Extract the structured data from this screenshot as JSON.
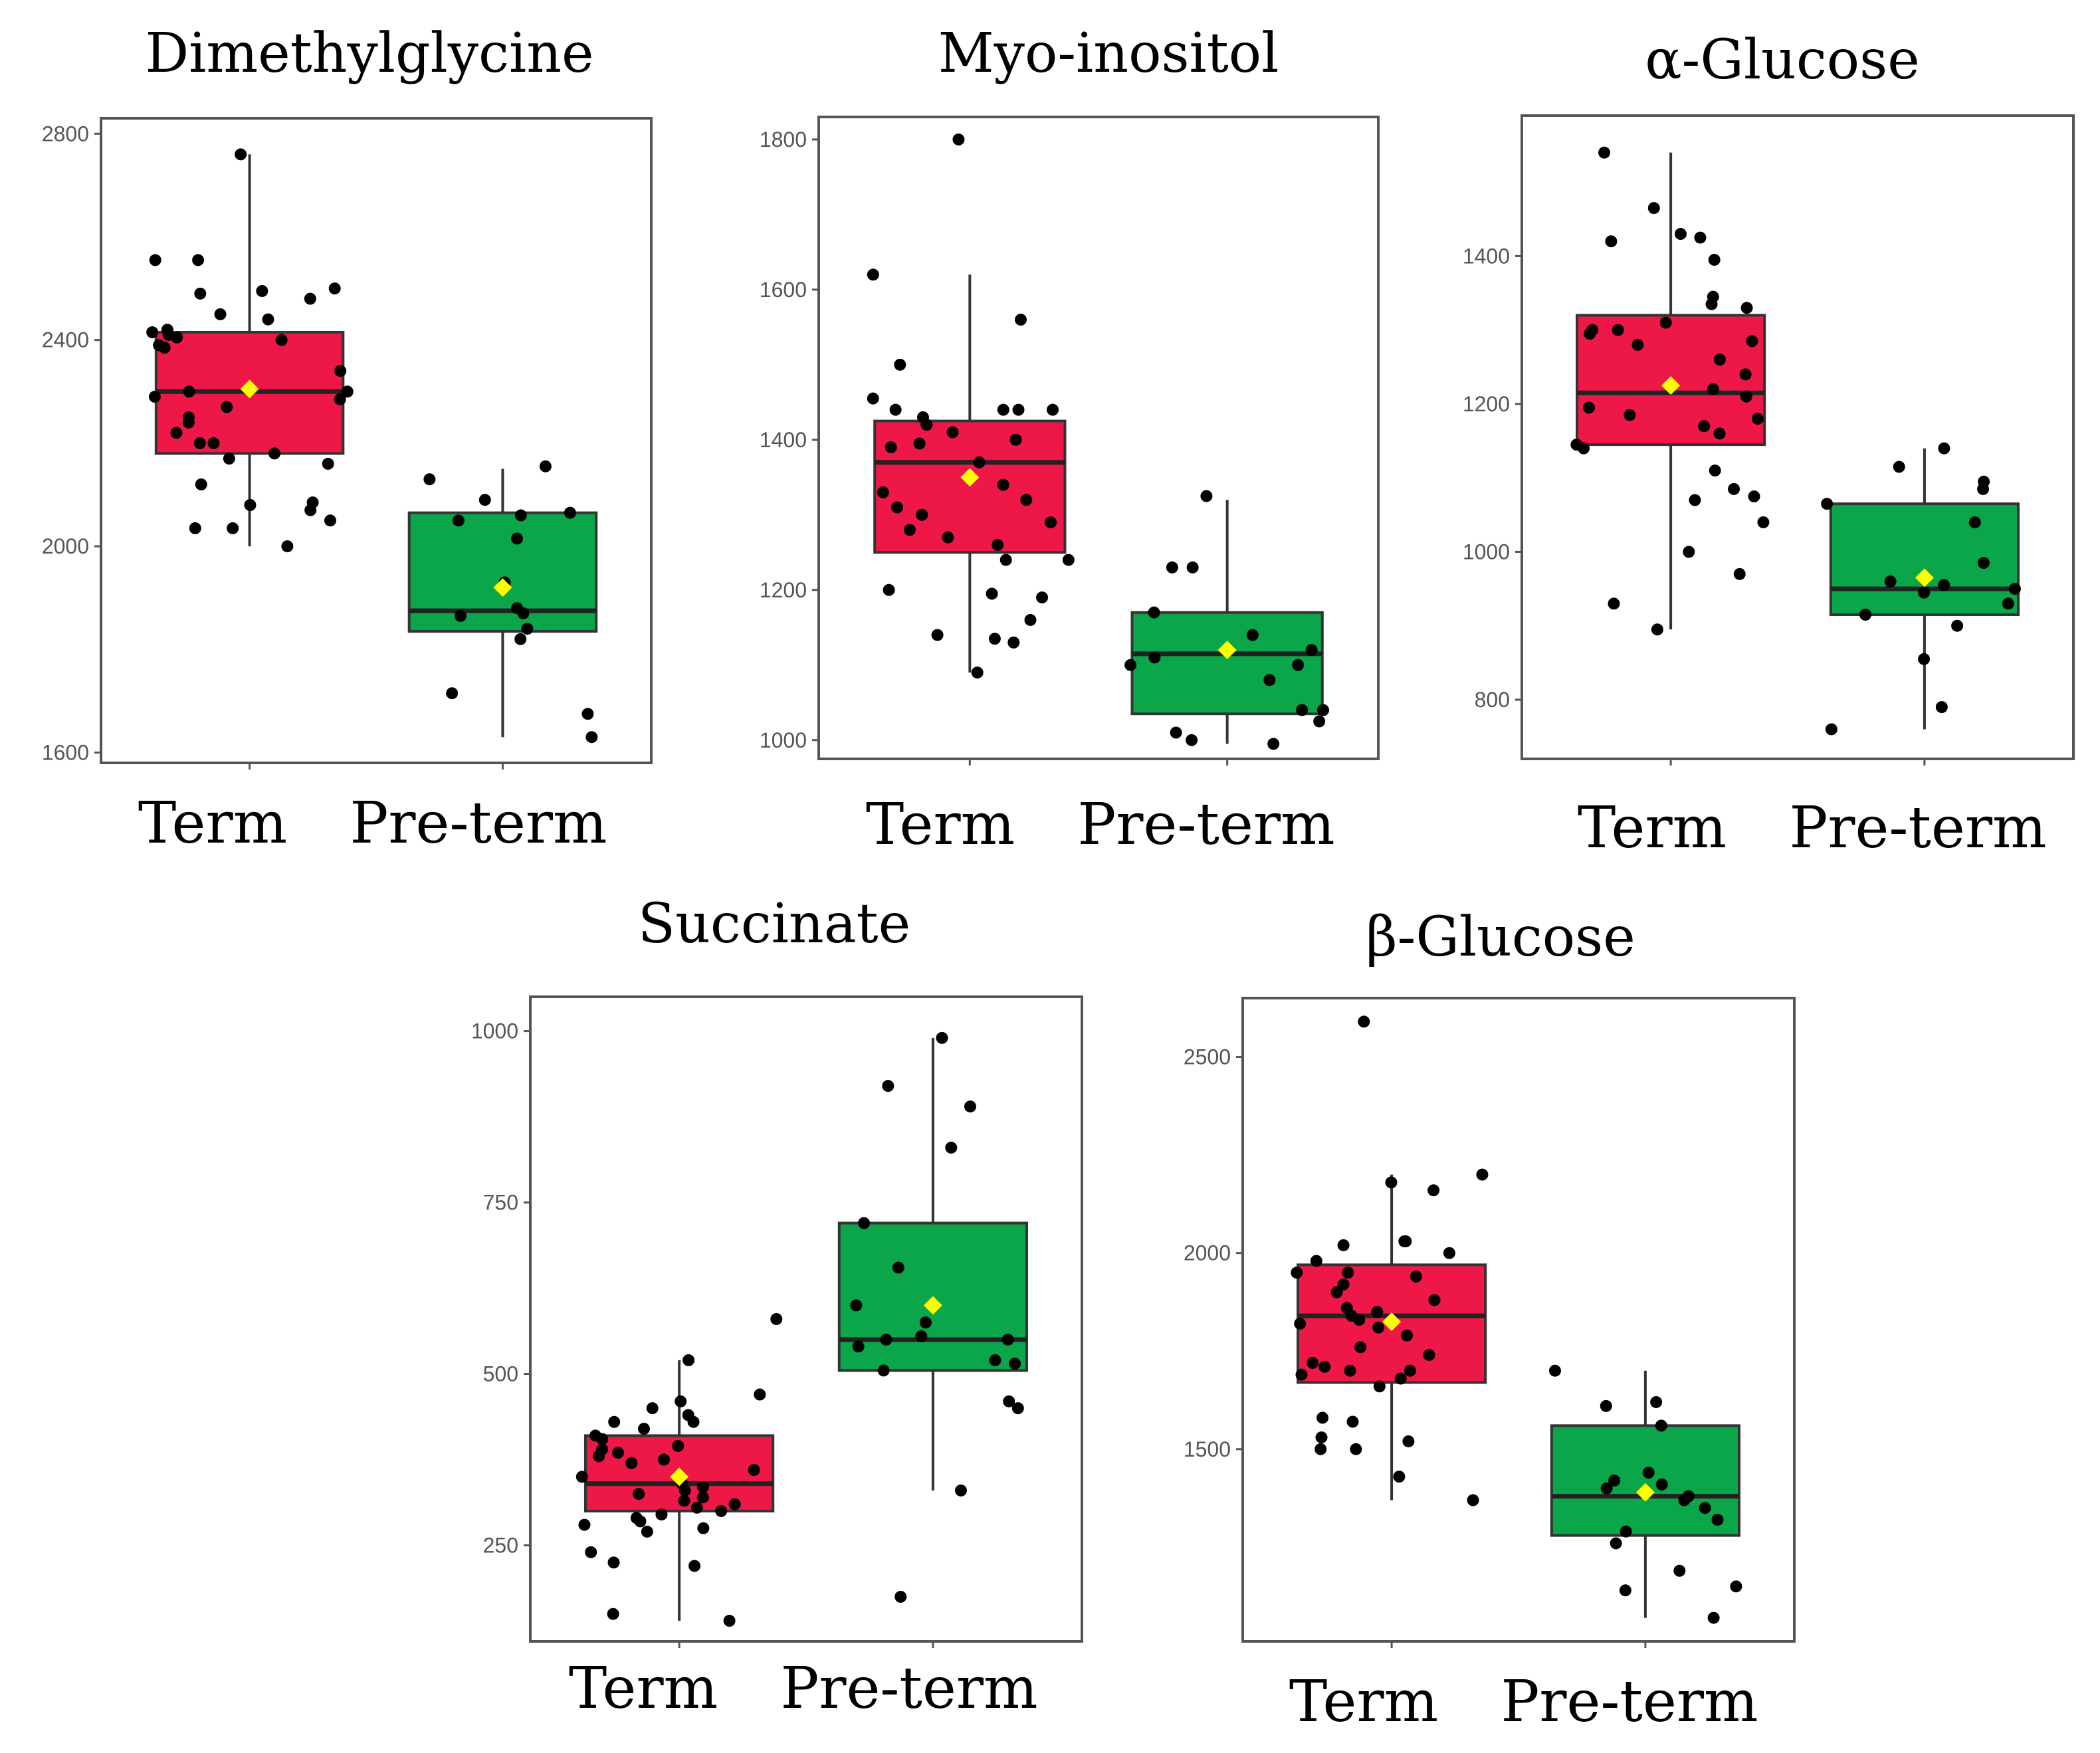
{
  "figure": {
    "colors": {
      "term_box": "#ED1848",
      "preterm_box": "#0BA54A",
      "points": "#000000",
      "mean_marker": "#FFFF00",
      "frame": "#555555"
    }
  },
  "chart_data": [
    {
      "type": "box",
      "title": "Dimethylglycine",
      "categories": [
        "Term",
        "Pre-term"
      ],
      "ylim": [
        1580,
        2830
      ],
      "yticks": [
        1600,
        2000,
        2400,
        2800
      ],
      "series": [
        {
          "name": "Term",
          "whisker_low": 2000,
          "q1": 2180,
          "median": 2300,
          "q3": 2415,
          "whisker_high": 2760,
          "mean": 2305,
          "points": [
            2760,
            2555,
            2555,
            2500,
            2495,
            2490,
            2480,
            2450,
            2440,
            2420,
            2415,
            2410,
            2405,
            2400,
            2390,
            2385,
            2340,
            2300,
            2300,
            2290,
            2285,
            2270,
            2250,
            2240,
            2220,
            2200,
            2200,
            2180,
            2170,
            2160,
            2120,
            2085,
            2080,
            2070,
            2050,
            2035,
            2035,
            2000
          ]
        },
        {
          "name": "Pre-term",
          "whisker_low": 1630,
          "q1": 1835,
          "median": 1875,
          "q3": 2065,
          "whisker_high": 2150,
          "mean": 1920,
          "points": [
            2155,
            2130,
            2090,
            2065,
            2060,
            2050,
            2015,
            1930,
            1880,
            1870,
            1865,
            1840,
            1820,
            1715,
            1675,
            1630
          ]
        }
      ]
    },
    {
      "type": "box",
      "title": "Myo-inositol",
      "categories": [
        "Term",
        "Pre-term"
      ],
      "ylim": [
        975,
        1830
      ],
      "yticks": [
        1000,
        1200,
        1400,
        1600,
        1800
      ],
      "series": [
        {
          "name": "Term",
          "whisker_low": 1090,
          "q1": 1250,
          "median": 1370,
          "q3": 1425,
          "whisker_high": 1620,
          "mean": 1350,
          "points": [
            1800,
            1620,
            1560,
            1500,
            1455,
            1440,
            1440,
            1440,
            1440,
            1430,
            1420,
            1410,
            1400,
            1395,
            1390,
            1370,
            1340,
            1330,
            1320,
            1310,
            1300,
            1290,
            1280,
            1270,
            1260,
            1240,
            1240,
            1200,
            1195,
            1190,
            1160,
            1140,
            1135,
            1130,
            1090
          ]
        },
        {
          "name": "Pre-term",
          "whisker_low": 995,
          "q1": 1035,
          "median": 1115,
          "q3": 1170,
          "whisker_high": 1320,
          "mean": 1120,
          "points": [
            1325,
            1230,
            1230,
            1170,
            1140,
            1120,
            1110,
            1100,
            1100,
            1080,
            1040,
            1040,
            1025,
            1010,
            1000,
            995
          ]
        }
      ]
    },
    {
      "type": "box",
      "title": "α-Glucose",
      "categories": [
        "Term",
        "Pre-term"
      ],
      "ylim": [
        720,
        1590
      ],
      "yticks": [
        800,
        1000,
        1200,
        1400
      ],
      "series": [
        {
          "name": "Term",
          "whisker_low": 895,
          "q1": 1145,
          "median": 1215,
          "q3": 1320,
          "whisker_high": 1540,
          "mean": 1225,
          "points": [
            1540,
            1465,
            1430,
            1425,
            1420,
            1395,
            1345,
            1335,
            1330,
            1310,
            1300,
            1300,
            1295,
            1285,
            1280,
            1260,
            1240,
            1220,
            1210,
            1195,
            1185,
            1180,
            1170,
            1160,
            1145,
            1140,
            1110,
            1085,
            1075,
            1070,
            1040,
            1000,
            970,
            930,
            895
          ]
        },
        {
          "name": "Pre-term",
          "whisker_low": 760,
          "q1": 915,
          "median": 950,
          "q3": 1065,
          "whisker_high": 1140,
          "mean": 965,
          "points": [
            1140,
            1115,
            1095,
            1085,
            1065,
            1040,
            985,
            960,
            955,
            950,
            945,
            930,
            915,
            900,
            855,
            790,
            760
          ]
        }
      ]
    },
    {
      "type": "box",
      "title": "Succinate",
      "categories": [
        "Term",
        "Pre-term"
      ],
      "ylim": [
        110,
        1050
      ],
      "yticks": [
        250,
        500,
        750,
        1000
      ],
      "series": [
        {
          "name": "Term",
          "whisker_low": 140,
          "q1": 300,
          "median": 340,
          "q3": 410,
          "whisker_high": 520,
          "mean": 350,
          "points": [
            580,
            520,
            470,
            460,
            450,
            440,
            430,
            430,
            420,
            410,
            405,
            395,
            390,
            385,
            380,
            375,
            370,
            360,
            350,
            340,
            335,
            330,
            325,
            320,
            315,
            310,
            305,
            300,
            295,
            290,
            285,
            280,
            275,
            270,
            240,
            225,
            220,
            150,
            140
          ]
        },
        {
          "name": "Pre-term",
          "whisker_low": 330,
          "q1": 505,
          "median": 550,
          "q3": 720,
          "whisker_high": 990,
          "mean": 600,
          "points": [
            990,
            920,
            890,
            830,
            720,
            655,
            600,
            575,
            555,
            550,
            550,
            540,
            520,
            515,
            505,
            460,
            450,
            330,
            175
          ]
        }
      ]
    },
    {
      "type": "box",
      "title": "β-Glucose",
      "categories": [
        "Term",
        "Pre-term"
      ],
      "ylim": [
        1010,
        2650
      ],
      "yticks": [
        1500,
        2000,
        2500
      ],
      "series": [
        {
          "name": "Term",
          "whisker_low": 1370,
          "q1": 1670,
          "median": 1840,
          "q3": 1970,
          "whisker_high": 2200,
          "mean": 1825,
          "points": [
            2590,
            2200,
            2180,
            2160,
            2030,
            2030,
            2020,
            2000,
            1980,
            1950,
            1950,
            1940,
            1920,
            1900,
            1880,
            1860,
            1850,
            1840,
            1830,
            1820,
            1810,
            1790,
            1760,
            1740,
            1720,
            1710,
            1700,
            1700,
            1690,
            1680,
            1660,
            1580,
            1570,
            1530,
            1520,
            1500,
            1500,
            1430,
            1370
          ]
        },
        {
          "name": "Pre-term",
          "whisker_low": 1070,
          "q1": 1280,
          "median": 1380,
          "q3": 1560,
          "whisker_high": 1700,
          "mean": 1390,
          "points": [
            1700,
            1620,
            1610,
            1560,
            1440,
            1420,
            1410,
            1400,
            1390,
            1380,
            1370,
            1350,
            1320,
            1290,
            1260,
            1190,
            1150,
            1140,
            1070
          ]
        }
      ]
    }
  ]
}
